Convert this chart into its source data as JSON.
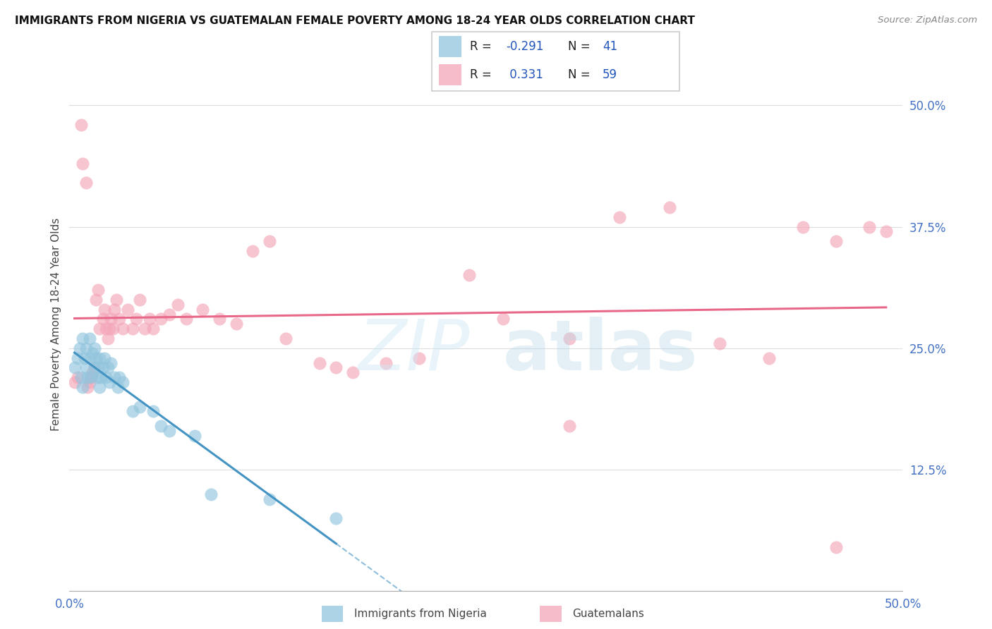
{
  "title": "IMMIGRANTS FROM NIGERIA VS GUATEMALAN FEMALE POVERTY AMONG 18-24 YEAR OLDS CORRELATION CHART",
  "source": "Source: ZipAtlas.com",
  "ylabel": "Female Poverty Among 18-24 Year Olds",
  "xlim": [
    0.0,
    0.5
  ],
  "ylim": [
    0.0,
    0.55
  ],
  "yticks": [
    0.125,
    0.25,
    0.375,
    0.5
  ],
  "ytick_labels": [
    "12.5%",
    "25.0%",
    "37.5%",
    "50.0%"
  ],
  "blue_color": "#92c5de",
  "pink_color": "#f4a6b8",
  "blue_line_color": "#4393c3",
  "pink_line_color": "#e8688a",
  "nigeria_x": [
    0.003,
    0.005,
    0.006,
    0.007,
    0.008,
    0.008,
    0.009,
    0.01,
    0.01,
    0.011,
    0.012,
    0.012,
    0.013,
    0.014,
    0.015,
    0.015,
    0.016,
    0.017,
    0.017,
    0.018,
    0.018,
    0.019,
    0.02,
    0.021,
    0.022,
    0.023,
    0.024,
    0.025,
    0.027,
    0.029,
    0.03,
    0.032,
    0.038,
    0.042,
    0.05,
    0.055,
    0.06,
    0.075,
    0.085,
    0.12,
    0.16
  ],
  "nigeria_y": [
    0.23,
    0.24,
    0.25,
    0.22,
    0.26,
    0.21,
    0.24,
    0.23,
    0.25,
    0.22,
    0.24,
    0.26,
    0.22,
    0.245,
    0.23,
    0.25,
    0.24,
    0.22,
    0.23,
    0.21,
    0.24,
    0.22,
    0.23,
    0.24,
    0.22,
    0.23,
    0.215,
    0.235,
    0.22,
    0.21,
    0.22,
    0.215,
    0.185,
    0.19,
    0.185,
    0.17,
    0.165,
    0.16,
    0.1,
    0.095,
    0.075
  ],
  "guatemalan_x": [
    0.003,
    0.005,
    0.007,
    0.008,
    0.01,
    0.011,
    0.012,
    0.013,
    0.014,
    0.015,
    0.016,
    0.017,
    0.018,
    0.02,
    0.021,
    0.022,
    0.023,
    0.024,
    0.025,
    0.026,
    0.027,
    0.028,
    0.03,
    0.032,
    0.035,
    0.038,
    0.04,
    0.042,
    0.045,
    0.048,
    0.05,
    0.055,
    0.06,
    0.065,
    0.07,
    0.08,
    0.09,
    0.1,
    0.11,
    0.12,
    0.13,
    0.15,
    0.16,
    0.17,
    0.19,
    0.21,
    0.24,
    0.26,
    0.3,
    0.33,
    0.36,
    0.39,
    0.42,
    0.44,
    0.46,
    0.48,
    0.49,
    0.3,
    0.46
  ],
  "guatemalan_y": [
    0.215,
    0.22,
    0.48,
    0.44,
    0.42,
    0.21,
    0.215,
    0.22,
    0.225,
    0.23,
    0.3,
    0.31,
    0.27,
    0.28,
    0.29,
    0.27,
    0.26,
    0.27,
    0.28,
    0.27,
    0.29,
    0.3,
    0.28,
    0.27,
    0.29,
    0.27,
    0.28,
    0.3,
    0.27,
    0.28,
    0.27,
    0.28,
    0.285,
    0.295,
    0.28,
    0.29,
    0.28,
    0.275,
    0.35,
    0.36,
    0.26,
    0.235,
    0.23,
    0.225,
    0.235,
    0.24,
    0.325,
    0.28,
    0.26,
    0.385,
    0.395,
    0.255,
    0.24,
    0.375,
    0.36,
    0.375,
    0.37,
    0.17,
    0.045
  ]
}
